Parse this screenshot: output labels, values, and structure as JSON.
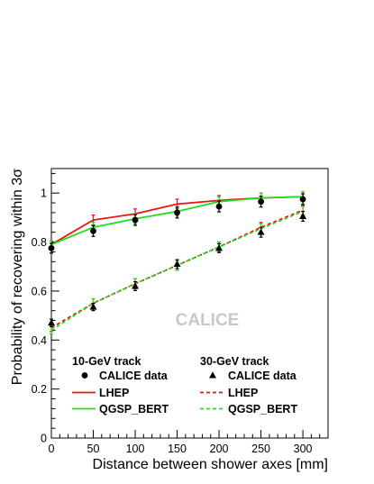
{
  "chart_data": {
    "type": "line",
    "xlabel": "Distance between shower axes [mm]",
    "ylabel": "Probability of recovering within 3σ",
    "watermark": "CALICE",
    "xlim": [
      0,
      330
    ],
    "ylim": [
      0,
      1.1
    ],
    "x_ticks": [
      0,
      50,
      100,
      150,
      200,
      250,
      300
    ],
    "y_ticks": [
      0,
      0.2,
      0.4,
      0.6,
      0.8,
      1
    ],
    "x_tick_labels": [
      "0",
      "50",
      "100",
      "150",
      "200",
      "250",
      "300"
    ],
    "y_tick_labels": [
      "0",
      "0.2",
      "0.4",
      "0.6",
      "0.8",
      "1"
    ],
    "x": [
      0,
      50,
      100,
      150,
      200,
      250,
      300
    ],
    "legend": {
      "left_header": "10-GeV track",
      "right_header": "30-GeV track",
      "left_entries": [
        "CALICE data",
        "LHEP",
        "QGSP_BERT"
      ],
      "right_entries": [
        "CALICE data",
        "LHEP",
        "QGSP_BERT"
      ]
    },
    "series": [
      {
        "group": "10-GeV track",
        "name": "CALICE data",
        "kind": "points",
        "marker": "circle",
        "color": "#000000",
        "values": [
          0.775,
          0.845,
          0.89,
          0.92,
          0.945,
          0.965,
          0.975
        ],
        "errors": [
          0.02,
          0.022,
          0.022,
          0.022,
          0.022,
          0.022,
          0.022
        ]
      },
      {
        "group": "10-GeV track",
        "name": "LHEP",
        "kind": "line",
        "dash": "solid",
        "color": "#ee1111",
        "values": [
          0.79,
          0.89,
          0.915,
          0.955,
          0.97,
          0.98,
          0.985
        ],
        "errors": [
          0.015,
          0.02,
          0.02,
          0.02,
          0.02,
          0.02,
          0.02
        ]
      },
      {
        "group": "10-GeV track",
        "name": "QGSP_BERT",
        "kind": "line",
        "dash": "solid",
        "color": "#22dd22",
        "values": [
          0.79,
          0.86,
          0.895,
          0.925,
          0.965,
          0.98,
          0.985
        ],
        "errors": [
          0.015,
          0.02,
          0.02,
          0.02,
          0.02,
          0.02,
          0.02
        ]
      },
      {
        "group": "30-GeV track",
        "name": "CALICE data",
        "kind": "points",
        "marker": "triangle",
        "color": "#000000",
        "values": [
          0.47,
          0.535,
          0.62,
          0.71,
          0.775,
          0.84,
          0.905
        ],
        "errors": [
          0.015,
          0.015,
          0.018,
          0.018,
          0.018,
          0.02,
          0.02
        ]
      },
      {
        "group": "30-GeV track",
        "name": "LHEP",
        "kind": "line",
        "dash": "dashed",
        "color": "#ee1111",
        "values": [
          0.45,
          0.55,
          0.63,
          0.705,
          0.78,
          0.86,
          0.93
        ],
        "errors": [
          0.015,
          0.018,
          0.02,
          0.02,
          0.02,
          0.02,
          0.02
        ]
      },
      {
        "group": "30-GeV track",
        "name": "QGSP_BERT",
        "kind": "line",
        "dash": "dashed",
        "color": "#22dd22",
        "values": [
          0.44,
          0.55,
          0.63,
          0.705,
          0.78,
          0.855,
          0.925
        ],
        "errors": [
          0.015,
          0.018,
          0.02,
          0.02,
          0.02,
          0.02,
          0.02
        ]
      }
    ]
  }
}
